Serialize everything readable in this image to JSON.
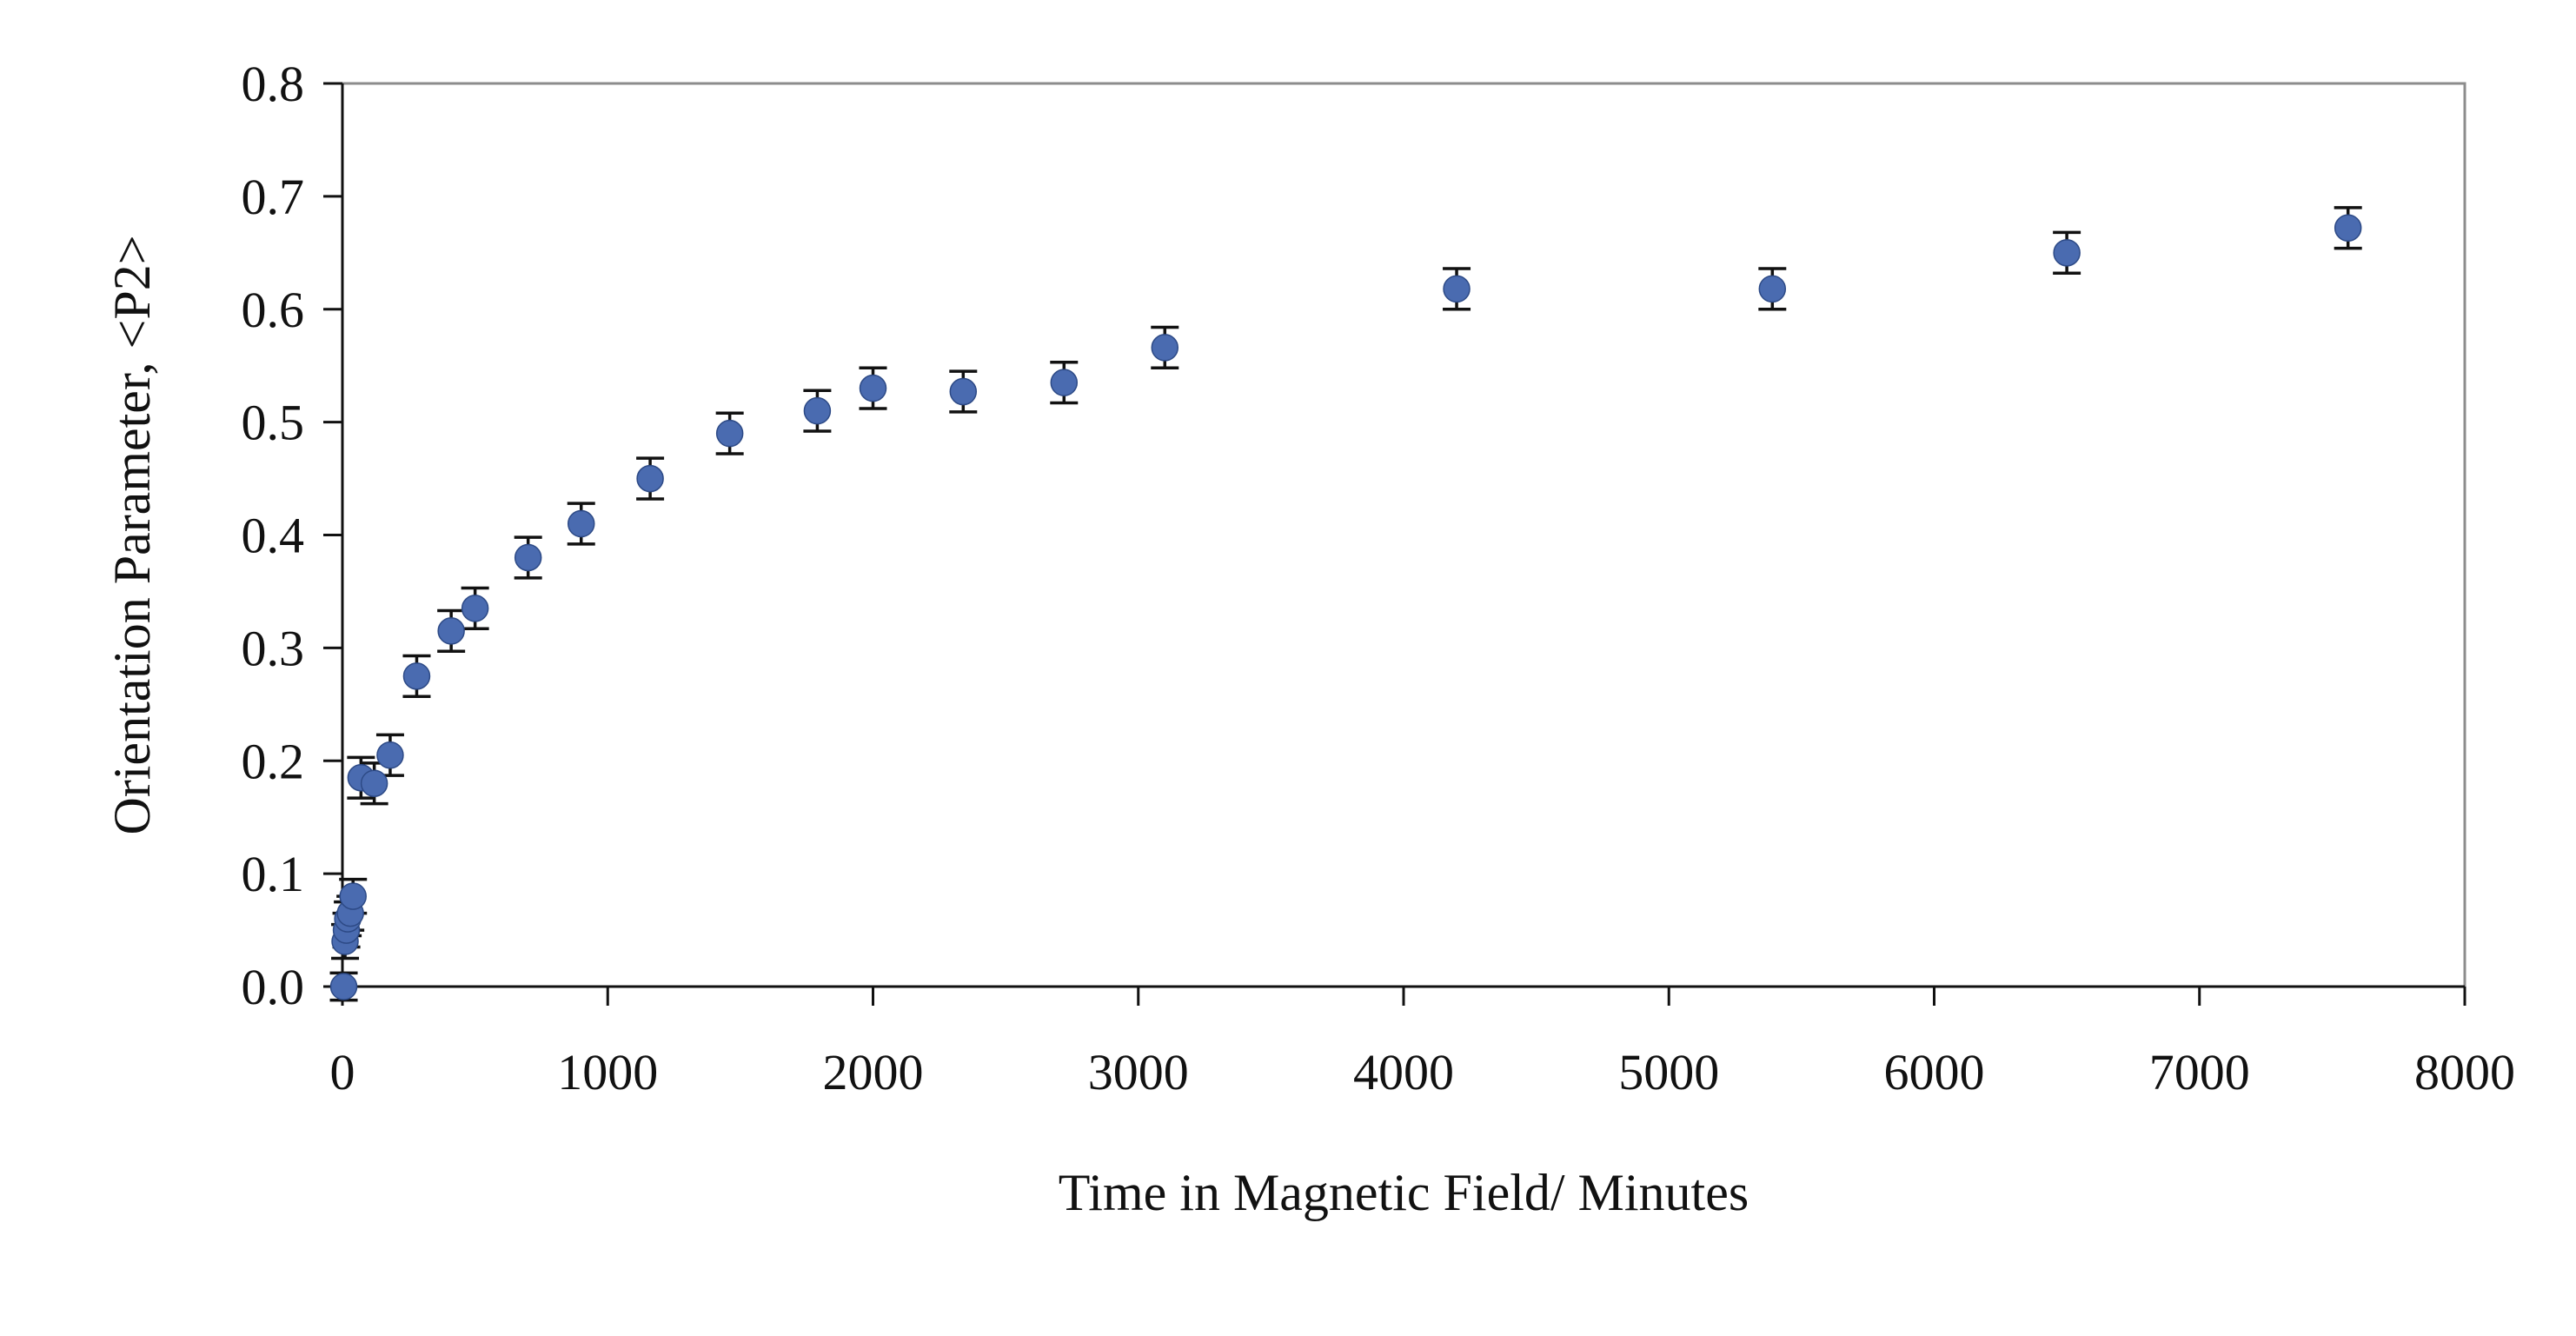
{
  "chart_data": {
    "type": "scatter",
    "title": "",
    "xlabel": "Time in Magnetic Field/ Minutes",
    "ylabel": "Orientation Parameter, <P2>",
    "xlim": [
      0,
      8000
    ],
    "ylim": [
      0.0,
      0.8
    ],
    "x_ticks": [
      "0",
      "1000",
      "2000",
      "3000",
      "4000",
      "5000",
      "6000",
      "7000",
      "8000"
    ],
    "y_ticks": [
      "0.0",
      "0.1",
      "0.2",
      "0.3",
      "0.4",
      "0.5",
      "0.6",
      "0.7",
      "0.8"
    ],
    "grid": false,
    "legend": "none",
    "marker_color": "#4a6bb0",
    "error_bar_color": "#111111",
    "points": [
      {
        "x": 5,
        "y": 0.0,
        "err": 0.012
      },
      {
        "x": 10,
        "y": 0.04,
        "err": 0.015
      },
      {
        "x": 15,
        "y": 0.05,
        "err": 0.015
      },
      {
        "x": 20,
        "y": 0.06,
        "err": 0.015
      },
      {
        "x": 30,
        "y": 0.065,
        "err": 0.015
      },
      {
        "x": 40,
        "y": 0.08,
        "err": 0.015
      },
      {
        "x": 70,
        "y": 0.185,
        "err": 0.018
      },
      {
        "x": 120,
        "y": 0.18,
        "err": 0.018
      },
      {
        "x": 180,
        "y": 0.205,
        "err": 0.018
      },
      {
        "x": 280,
        "y": 0.275,
        "err": 0.018
      },
      {
        "x": 410,
        "y": 0.315,
        "err": 0.018
      },
      {
        "x": 500,
        "y": 0.335,
        "err": 0.018
      },
      {
        "x": 700,
        "y": 0.38,
        "err": 0.018
      },
      {
        "x": 900,
        "y": 0.41,
        "err": 0.018
      },
      {
        "x": 1160,
        "y": 0.45,
        "err": 0.018
      },
      {
        "x": 1460,
        "y": 0.49,
        "err": 0.018
      },
      {
        "x": 1790,
        "y": 0.51,
        "err": 0.018
      },
      {
        "x": 2000,
        "y": 0.53,
        "err": 0.018
      },
      {
        "x": 2340,
        "y": 0.527,
        "err": 0.018
      },
      {
        "x": 2720,
        "y": 0.535,
        "err": 0.018
      },
      {
        "x": 3100,
        "y": 0.566,
        "err": 0.018
      },
      {
        "x": 4200,
        "y": 0.618,
        "err": 0.018
      },
      {
        "x": 5390,
        "y": 0.618,
        "err": 0.018
      },
      {
        "x": 6500,
        "y": 0.65,
        "err": 0.018
      },
      {
        "x": 7560,
        "y": 0.672,
        "err": 0.018
      }
    ]
  }
}
